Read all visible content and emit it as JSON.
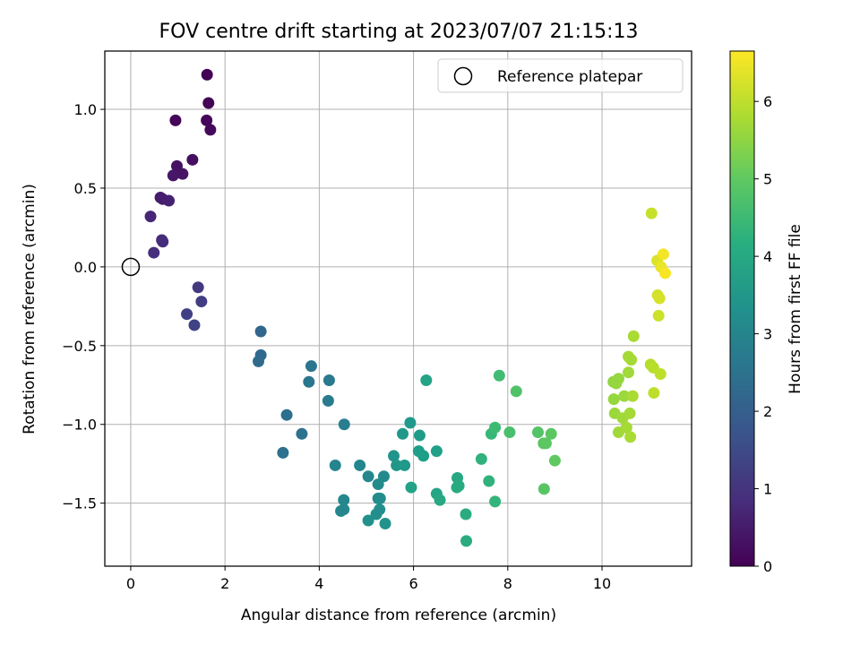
{
  "chart_data": {
    "type": "scatter",
    "title": "FOV centre drift starting at 2023/07/07 21:15:13",
    "xlabel": "Angular distance from reference (arcmin)",
    "ylabel": "Rotation from reference (arcmin)",
    "xlim": [
      -0.55,
      11.9
    ],
    "ylim": [
      -1.9,
      1.37
    ],
    "xticks": [
      0,
      2,
      4,
      6,
      8,
      10
    ],
    "yticks": [
      -1.5,
      -1.0,
      -0.5,
      0.0,
      0.5,
      1.0
    ],
    "ytick_labels": [
      "−1.5",
      "−1.0",
      "−0.5",
      "0.0",
      "0.5",
      "1.0"
    ],
    "grid": true,
    "legend": {
      "placement": "top-right",
      "entries": [
        "Reference platepar"
      ]
    },
    "reference_point": {
      "x": 0.0,
      "y": 0.0
    },
    "colorbar": {
      "label": "Hours from first FF file",
      "colormap": "viridis",
      "range": [
        0,
        6.65
      ],
      "ticks": [
        0,
        1,
        2,
        3,
        4,
        5,
        6
      ]
    },
    "series": [
      {
        "points": [
          [
            1.62,
            1.22,
            0.0
          ],
          [
            1.65,
            1.04,
            0.05
          ],
          [
            0.95,
            0.93,
            0.1
          ],
          [
            1.61,
            0.93,
            0.12
          ],
          [
            1.69,
            0.87,
            0.15
          ],
          [
            1.31,
            0.68,
            0.25
          ],
          [
            0.98,
            0.64,
            0.3
          ],
          [
            1.1,
            0.59,
            0.35
          ],
          [
            0.9,
            0.58,
            0.4
          ],
          [
            0.63,
            0.44,
            0.5
          ],
          [
            0.68,
            0.43,
            0.55
          ],
          [
            0.81,
            0.42,
            0.6
          ],
          [
            0.42,
            0.32,
            0.7
          ],
          [
            0.66,
            0.17,
            0.8
          ],
          [
            0.68,
            0.16,
            0.85
          ],
          [
            0.49,
            0.09,
            0.9
          ],
          [
            1.43,
            -0.13,
            1.1
          ],
          [
            1.5,
            -0.22,
            1.2
          ],
          [
            1.19,
            -0.3,
            1.25
          ],
          [
            1.35,
            -0.37,
            1.3
          ],
          [
            2.76,
            -0.41,
            2.2
          ],
          [
            2.76,
            -0.56,
            2.25
          ],
          [
            2.71,
            -0.6,
            2.3
          ],
          [
            3.83,
            -0.63,
            2.6
          ],
          [
            3.78,
            -0.73,
            2.65
          ],
          [
            4.21,
            -0.72,
            2.7
          ],
          [
            4.19,
            -0.85,
            2.75
          ],
          [
            3.31,
            -0.94,
            2.4
          ],
          [
            3.63,
            -1.06,
            2.5
          ],
          [
            3.23,
            -1.18,
            2.45
          ],
          [
            4.53,
            -1.0,
            2.85
          ],
          [
            4.34,
            -1.26,
            3.0
          ],
          [
            4.86,
            -1.26,
            3.05
          ],
          [
            5.04,
            -1.33,
            3.1
          ],
          [
            5.37,
            -1.33,
            3.15
          ],
          [
            5.25,
            -1.38,
            3.2
          ],
          [
            5.25,
            -1.47,
            3.2
          ],
          [
            5.29,
            -1.47,
            3.25
          ],
          [
            4.52,
            -1.48,
            3.1
          ],
          [
            4.52,
            -1.54,
            3.15
          ],
          [
            4.46,
            -1.55,
            3.1
          ],
          [
            5.28,
            -1.54,
            3.3
          ],
          [
            5.21,
            -1.57,
            3.3
          ],
          [
            5.04,
            -1.61,
            3.35
          ],
          [
            5.4,
            -1.63,
            3.4
          ],
          [
            5.58,
            -1.2,
            3.45
          ],
          [
            5.64,
            -1.26,
            3.5
          ],
          [
            5.81,
            -1.26,
            3.55
          ],
          [
            5.77,
            -1.06,
            3.55
          ],
          [
            5.93,
            -0.99,
            3.6
          ],
          [
            6.13,
            -1.07,
            3.65
          ],
          [
            6.11,
            -1.17,
            3.7
          ],
          [
            6.21,
            -1.2,
            3.7
          ],
          [
            6.49,
            -1.17,
            3.75
          ],
          [
            5.95,
            -1.4,
            3.8
          ],
          [
            6.27,
            -0.72,
            3.85
          ],
          [
            6.49,
            -1.44,
            3.9
          ],
          [
            6.56,
            -1.48,
            3.95
          ],
          [
            6.93,
            -1.34,
            4.0
          ],
          [
            6.92,
            -1.4,
            4.05
          ],
          [
            6.96,
            -1.39,
            4.05
          ],
          [
            7.11,
            -1.57,
            4.1
          ],
          [
            7.12,
            -1.74,
            4.1
          ],
          [
            7.44,
            -1.22,
            4.25
          ],
          [
            7.6,
            -1.36,
            4.3
          ],
          [
            7.73,
            -1.49,
            4.35
          ],
          [
            7.65,
            -1.06,
            4.45
          ],
          [
            7.73,
            -1.02,
            4.55
          ],
          [
            7.82,
            -0.69,
            4.6
          ],
          [
            8.18,
            -0.79,
            4.8
          ],
          [
            8.04,
            -1.05,
            4.7
          ],
          [
            8.64,
            -1.05,
            4.85
          ],
          [
            8.76,
            -1.12,
            4.9
          ],
          [
            8.81,
            -1.12,
            4.95
          ],
          [
            8.92,
            -1.06,
            4.95
          ],
          [
            9.0,
            -1.23,
            5.0
          ],
          [
            8.77,
            -1.41,
            4.9
          ],
          [
            10.24,
            -0.73,
            5.55
          ],
          [
            10.3,
            -0.74,
            5.6
          ],
          [
            10.35,
            -0.71,
            5.6
          ],
          [
            10.47,
            -0.82,
            5.65
          ],
          [
            10.56,
            -0.67,
            5.7
          ],
          [
            10.56,
            -0.57,
            5.75
          ],
          [
            10.62,
            -0.59,
            5.75
          ],
          [
            10.67,
            -0.44,
            5.8
          ],
          [
            10.25,
            -0.84,
            5.6
          ],
          [
            10.27,
            -0.93,
            5.65
          ],
          [
            10.44,
            -0.96,
            5.7
          ],
          [
            10.35,
            -1.05,
            5.7
          ],
          [
            10.52,
            -1.02,
            5.75
          ],
          [
            10.59,
            -0.93,
            5.75
          ],
          [
            10.6,
            -1.08,
            5.8
          ],
          [
            10.65,
            -0.82,
            5.8
          ],
          [
            11.03,
            -0.62,
            5.9
          ],
          [
            11.09,
            -0.64,
            5.95
          ],
          [
            11.24,
            -0.68,
            6.0
          ],
          [
            11.1,
            -0.8,
            6.0
          ],
          [
            11.05,
            0.34,
            6.1
          ],
          [
            11.17,
            0.04,
            6.3
          ],
          [
            11.3,
            0.08,
            6.55
          ],
          [
            11.25,
            0.0,
            6.45
          ],
          [
            11.34,
            -0.04,
            6.6
          ],
          [
            11.18,
            -0.18,
            6.2
          ],
          [
            11.22,
            -0.2,
            6.25
          ],
          [
            11.2,
            -0.31,
            6.15
          ]
        ]
      }
    ]
  }
}
